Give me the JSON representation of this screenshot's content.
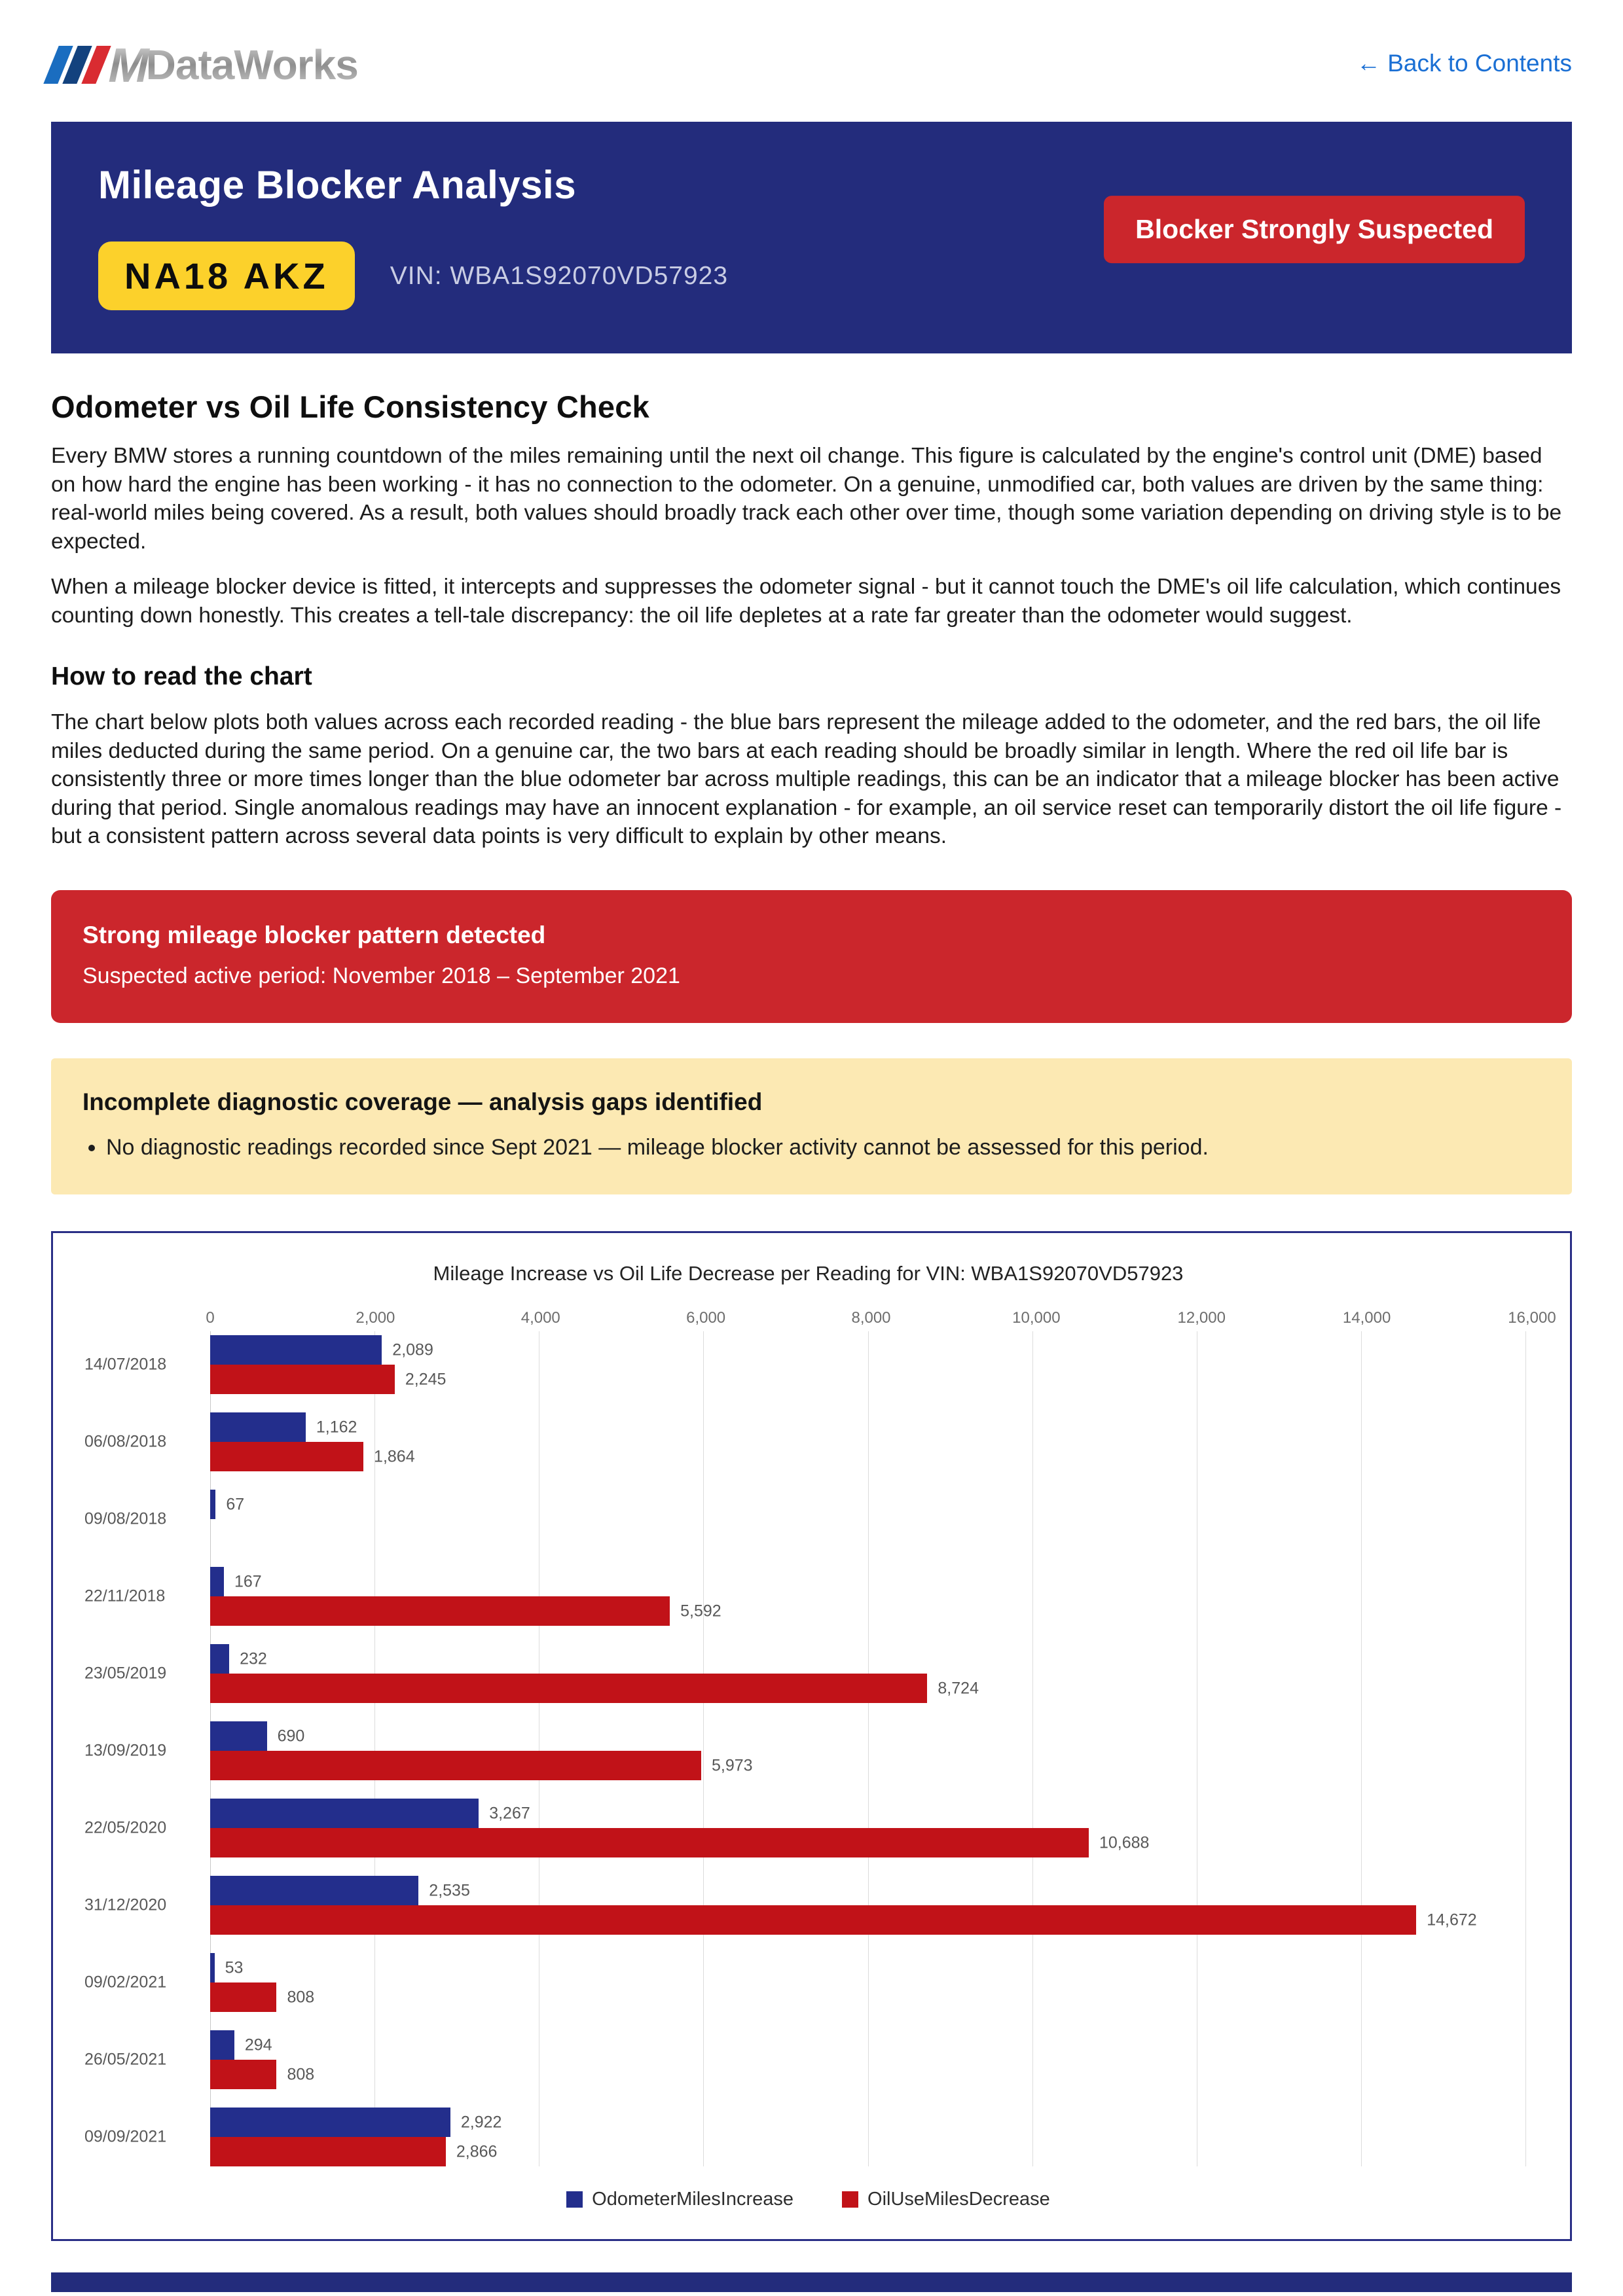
{
  "page": {
    "logo": {
      "brand_m": "M",
      "brand_text": "DataWorks"
    },
    "back_link": "← Back to Contents",
    "header": {
      "title": "Mileage Blocker Analysis",
      "plate": "NA18 AKZ",
      "vin_label": "VIN: WBA1S92070VD57923",
      "status_badge": "Blocker Strongly Suspected"
    },
    "section1": {
      "heading": "Odometer vs Oil Life Consistency Check",
      "para1": "Every BMW stores a running countdown of the miles remaining until the next oil change. This figure is calculated by the engine's control unit (DME) based on how hard the engine has been working - it has no connection to the odometer. On a genuine, unmodified car, both values are driven by the same thing: real-world miles being covered. As a result, both values should broadly track each other over time, though some variation depending on driving style is to be expected.",
      "para2": "When a mileage blocker device is fitted, it intercepts and suppresses the odometer signal - but it cannot touch the DME's oil life calculation, which continues counting down honestly. This creates a tell-tale discrepancy: the oil life depletes at a rate far greater than the odometer would suggest."
    },
    "section2": {
      "heading": "How to read the chart",
      "para": "The chart below plots both values across each recorded reading - the blue bars represent the mileage added to the odometer, and the red bars, the oil life miles deducted during the same period. On a genuine car, the two bars at each reading should be broadly similar in length. Where the red oil life bar is consistently three or more times longer than the blue odometer bar across multiple readings, this can be an indicator that a mileage blocker has been active during that period. Single anomalous readings may have an innocent explanation - for example, an oil service reset can temporarily distort the oil life figure - but a consistent pattern across several data points is very difficult to explain by other means."
    },
    "alert": {
      "title": "Strong mileage blocker pattern detected",
      "subtitle": "Suspected active period: November 2018 – September 2021"
    },
    "warning": {
      "title": "Incomplete diagnostic coverage — analysis gaps identified",
      "bullets": [
        "No diagnostic readings recorded since Sept 2021 — mileage blocker activity cannot be assessed for this period."
      ]
    },
    "colors": {
      "band_navy": "#232c7c",
      "badge_red": "#cb262c",
      "plate_yellow": "#fcd12b",
      "warning_yellow": "#fce9b3",
      "link_blue": "#1a6fd4"
    }
  },
  "chart_data": {
    "type": "bar",
    "orientation": "horizontal",
    "title": "Mileage Increase vs Oil Life Decrease per Reading for VIN: WBA1S92070VD57923",
    "categories": [
      "14/07/2018",
      "06/08/2018",
      "09/08/2018",
      "22/11/2018",
      "23/05/2019",
      "13/09/2019",
      "22/05/2020",
      "31/12/2020",
      "09/02/2021",
      "26/05/2021",
      "09/09/2021"
    ],
    "series": [
      {
        "name": "OdometerMilesIncrease",
        "color": "#232e8c",
        "values": [
          2089,
          1162,
          67,
          167,
          232,
          690,
          3267,
          2535,
          53,
          294,
          2922
        ]
      },
      {
        "name": "OilUseMilesDecrease",
        "color": "#c11218",
        "values": [
          2245,
          1864,
          0,
          5592,
          8724,
          5973,
          10688,
          14672,
          808,
          808,
          2866
        ]
      }
    ],
    "xlim": [
      0,
      16000
    ],
    "x_ticks": [
      "0",
      "2,000",
      "4,000",
      "6,000",
      "8,000",
      "10,000",
      "12,000",
      "14,000",
      "16,000"
    ],
    "grid": true,
    "legend_position": "bottom",
    "value_labels": true
  }
}
